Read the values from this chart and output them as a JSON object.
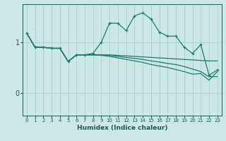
{
  "xlabel": "Humidex (Indice chaleur)",
  "bg_color": "#cce8e5",
  "line_color": "#1e7a6e",
  "grid_color": "#aacfcb",
  "xlim": [
    -0.5,
    23.5
  ],
  "ylim": [
    -0.45,
    1.75
  ],
  "yticks": [
    0,
    1
  ],
  "xticks": [
    0,
    1,
    2,
    3,
    4,
    5,
    6,
    7,
    8,
    9,
    10,
    11,
    12,
    13,
    14,
    15,
    16,
    17,
    18,
    19,
    20,
    21,
    22,
    23
  ],
  "line1_x": [
    0,
    1,
    2,
    3,
    4,
    5,
    6,
    7,
    8,
    9,
    10,
    11,
    12,
    13,
    14,
    15,
    16,
    17,
    18,
    19,
    20,
    21,
    22,
    23
  ],
  "line1_y": [
    1.18,
    0.9,
    0.9,
    0.88,
    0.88,
    0.62,
    0.75,
    0.75,
    0.78,
    1.0,
    1.38,
    1.37,
    1.23,
    1.52,
    1.58,
    1.46,
    1.2,
    1.12,
    1.12,
    0.9,
    0.78,
    0.95,
    0.35,
    0.45
  ],
  "line2_x": [
    0,
    1,
    2,
    3,
    4,
    5,
    6,
    7,
    8,
    9,
    10,
    11,
    12,
    13,
    14,
    15,
    16,
    17,
    18,
    19,
    20,
    21,
    22,
    23
  ],
  "line2_y": [
    1.18,
    0.9,
    0.9,
    0.88,
    0.88,
    0.62,
    0.75,
    0.75,
    0.75,
    0.75,
    0.75,
    0.74,
    0.73,
    0.72,
    0.71,
    0.7,
    0.69,
    0.68,
    0.67,
    0.66,
    0.65,
    0.64,
    0.63,
    0.63
  ],
  "line3_x": [
    0,
    1,
    2,
    3,
    4,
    5,
    6,
    7,
    8,
    9,
    10,
    11,
    12,
    13,
    14,
    15,
    16,
    17,
    18,
    19,
    20,
    21,
    22,
    23
  ],
  "line3_y": [
    1.18,
    0.9,
    0.9,
    0.88,
    0.88,
    0.62,
    0.75,
    0.75,
    0.75,
    0.75,
    0.74,
    0.72,
    0.7,
    0.68,
    0.66,
    0.63,
    0.61,
    0.58,
    0.56,
    0.52,
    0.47,
    0.42,
    0.32,
    0.32
  ],
  "line4_x": [
    0,
    1,
    2,
    3,
    4,
    5,
    6,
    7,
    8,
    9,
    10,
    11,
    12,
    13,
    14,
    15,
    16,
    17,
    18,
    19,
    20,
    21,
    22,
    23
  ],
  "line4_y": [
    1.18,
    0.9,
    0.9,
    0.88,
    0.88,
    0.62,
    0.75,
    0.75,
    0.75,
    0.74,
    0.72,
    0.69,
    0.66,
    0.63,
    0.6,
    0.56,
    0.53,
    0.5,
    0.46,
    0.42,
    0.37,
    0.38,
    0.25,
    0.42
  ]
}
